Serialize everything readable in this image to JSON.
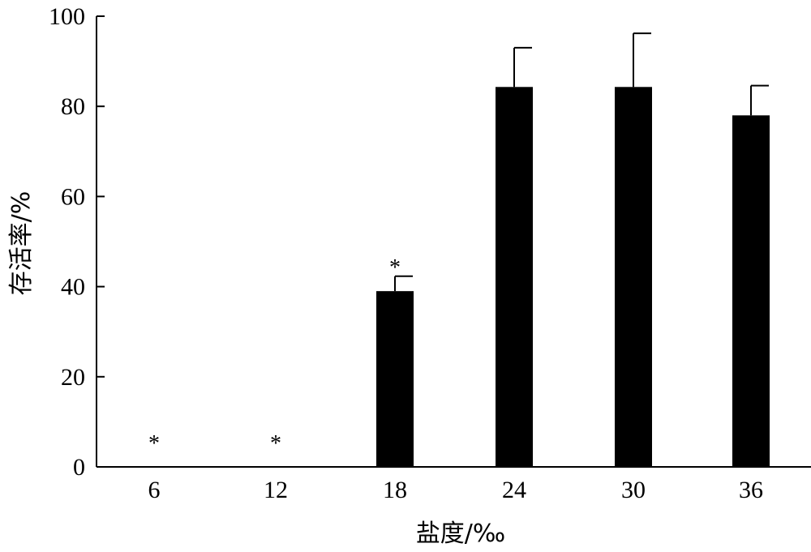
{
  "chart_data": {
    "type": "bar",
    "title": "",
    "xlabel": "盐度/‰",
    "ylabel": "存活率/%",
    "categories": [
      "6",
      "12",
      "18",
      "24",
      "30",
      "36"
    ],
    "values": [
      0,
      0,
      39,
      84.3,
      84.3,
      78
    ],
    "error_upper": [
      0,
      0,
      42.3,
      93,
      96.2,
      84.6
    ],
    "annotations": [
      "*",
      "*",
      "*",
      "",
      "",
      ""
    ],
    "yticks": [
      "0",
      "20",
      "40",
      "60",
      "80",
      "100"
    ],
    "ylim": [
      0,
      100
    ],
    "grid": false,
    "legend": "none",
    "bar_color": "#000000"
  }
}
